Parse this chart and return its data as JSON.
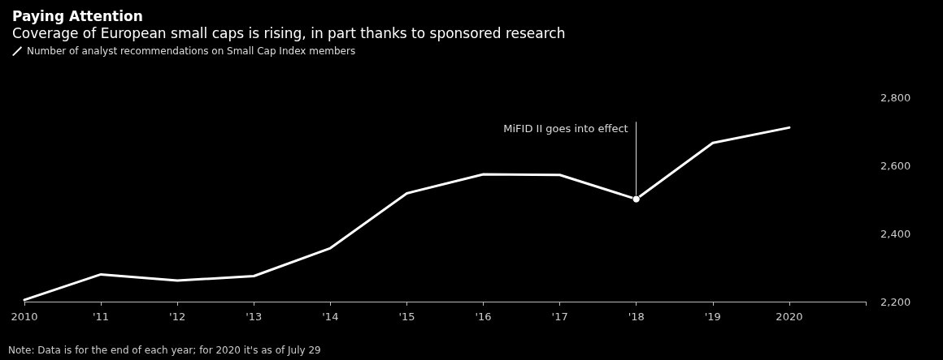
{
  "chart_data": {
    "type": "line",
    "title": "Paying Attention",
    "subtitle": "Coverage of European small caps is rising, in part thanks to sponsored research",
    "categories": [
      "2010",
      "'11",
      "'12",
      "'13",
      "'14",
      "'15",
      "'16",
      "'17",
      "'18",
      "'19",
      "2020"
    ],
    "series": [
      {
        "name": "Number of analyst recommendations on Small Cap Index members",
        "color": "#ffffff",
        "values": [
          2205,
          2280,
          2262,
          2275,
          2357,
          2518,
          2574,
          2572,
          2501,
          2666,
          2711
        ]
      }
    ],
    "ylim": [
      2200,
      2800
    ],
    "yticks": [
      {
        "value": 2200,
        "label": "2,200"
      },
      {
        "value": 2400,
        "label": "2,400"
      },
      {
        "value": 2600,
        "label": "2,600"
      },
      {
        "value": 2800,
        "label": "2,800"
      }
    ],
    "annotations": [
      {
        "text": "MiFID II goes into effect",
        "x": "'18",
        "y": 2501
      },
      "Note: Data is for the end of each year; for 2020 it's as of July 29"
    ],
    "legend": "top left",
    "grid": false,
    "marker": "none",
    "line_style": "solid"
  }
}
